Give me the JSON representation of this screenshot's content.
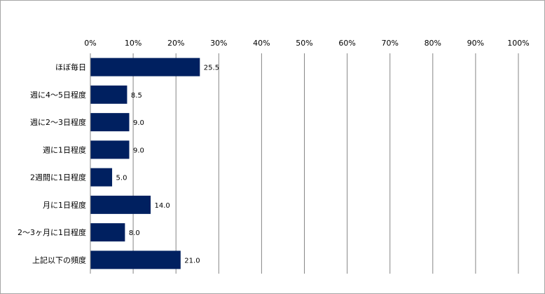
{
  "chart_data": {
    "type": "bar",
    "orientation": "horizontal",
    "categories": [
      "ほぼ毎日",
      "週に4～5日程度",
      "週に2～3日程度",
      "週に1日程度",
      "2週間に1日程度",
      "月に1日程度",
      "2～3ヶ月に1日程度",
      "上記以下の頻度"
    ],
    "values": [
      25.5,
      8.5,
      9.0,
      9.0,
      5.0,
      14.0,
      8.0,
      21.0
    ],
    "data_labels": [
      "25.5",
      "8.5",
      "9.0",
      "9.0",
      "5.0",
      "14.0",
      "8.0",
      "21.0"
    ],
    "x_ticks": [
      "0%",
      "10%",
      "20%",
      "30%",
      "40%",
      "50%",
      "60%",
      "70%",
      "80%",
      "90%",
      "100%"
    ],
    "xlim": [
      0,
      100
    ],
    "x_axis_position": "top",
    "grid": true,
    "legend": "none",
    "bar_color": "#002060",
    "grid_color": "#868686"
  }
}
